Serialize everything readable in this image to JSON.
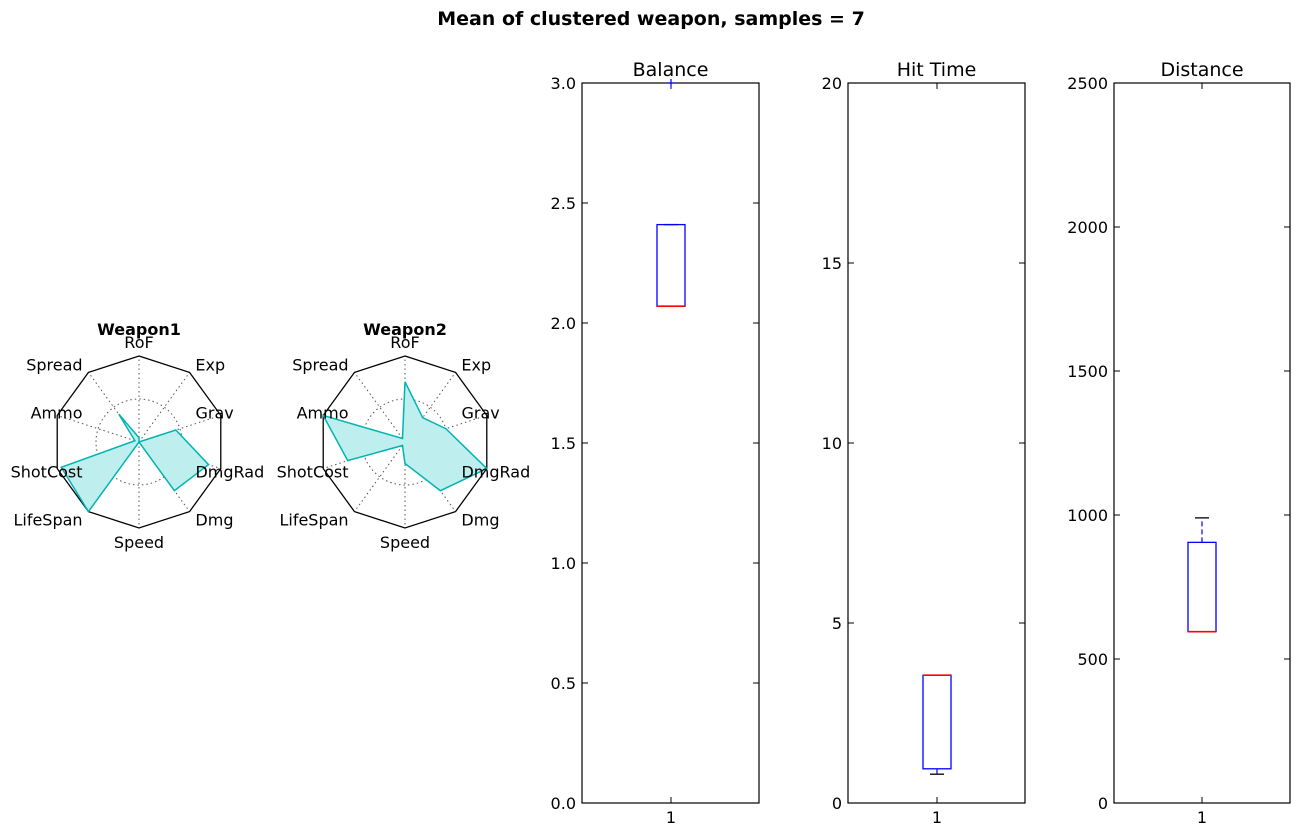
{
  "figure": {
    "suptitle": "Mean of clustered weapon, samples = 7"
  },
  "chart_data": [
    {
      "type": "radar",
      "title": "Weapon1",
      "axes": [
        "RoF",
        "Exp",
        "Grav",
        "DmgRad",
        "Dmg",
        "Speed",
        "LifeSpan",
        "ShotCost",
        "Ammo",
        "Spread"
      ],
      "rmax": 1.0,
      "grid_levels": [
        0.5,
        1.0
      ],
      "values": [
        0.05,
        0.0,
        0.45,
        0.85,
        0.7,
        0.0,
        1.0,
        0.95,
        0.05,
        0.4
      ],
      "color": "#00b5b0",
      "fill": "#bfeeee"
    },
    {
      "type": "radar",
      "title": "Weapon2",
      "axes": [
        "RoF",
        "Exp",
        "Grav",
        "DmgRad",
        "Dmg",
        "Speed",
        "LifeSpan",
        "ShotCost",
        "Ammo",
        "Spread"
      ],
      "rmax": 1.0,
      "grid_levels": [
        0.5,
        1.0
      ],
      "values": [
        0.7,
        0.35,
        0.5,
        1.0,
        0.7,
        0.25,
        0.05,
        0.7,
        1.0,
        0.05
      ],
      "color": "#00b5b0",
      "fill": "#bfeeee"
    },
    {
      "type": "box",
      "title": "Balance",
      "categories": [
        "1"
      ],
      "ylim": [
        0,
        3
      ],
      "yticks": [
        "0.0",
        "0.5",
        "1.0",
        "1.5",
        "2.0",
        "2.5",
        "3.0"
      ],
      "ytick_values": [
        0,
        0.5,
        1,
        1.5,
        2,
        2.5,
        3
      ],
      "whislo": 2.07,
      "q1": 2.07,
      "median": 2.07,
      "q3": 2.41,
      "whishi": 2.41,
      "fliers": [
        3.0
      ]
    },
    {
      "type": "box",
      "title": "Hit Time",
      "categories": [
        "1"
      ],
      "ylim": [
        0,
        20
      ],
      "yticks": [
        "0",
        "5",
        "10",
        "15",
        "20"
      ],
      "ytick_values": [
        0,
        5,
        10,
        15,
        20
      ],
      "whislo": 0.8,
      "q1": 0.95,
      "median": 3.55,
      "q3": 3.55,
      "whishi": 3.55,
      "fliers": []
    },
    {
      "type": "box",
      "title": "Distance",
      "categories": [
        "1"
      ],
      "ylim": [
        0,
        2500
      ],
      "yticks": [
        "0",
        "500",
        "1000",
        "1500",
        "2000",
        "2500"
      ],
      "ytick_values": [
        0,
        500,
        1000,
        1500,
        2000,
        2500
      ],
      "whislo": 595,
      "q1": 595,
      "median": 595,
      "q3": 905,
      "whishi": 990,
      "fliers": []
    }
  ],
  "colors": {
    "axis": "#000000",
    "box": "#0000ff",
    "median": "#ff0000",
    "flier": "#0000ff",
    "radar_line": "#00b5b0",
    "radar_fill": "#bfeeee"
  }
}
